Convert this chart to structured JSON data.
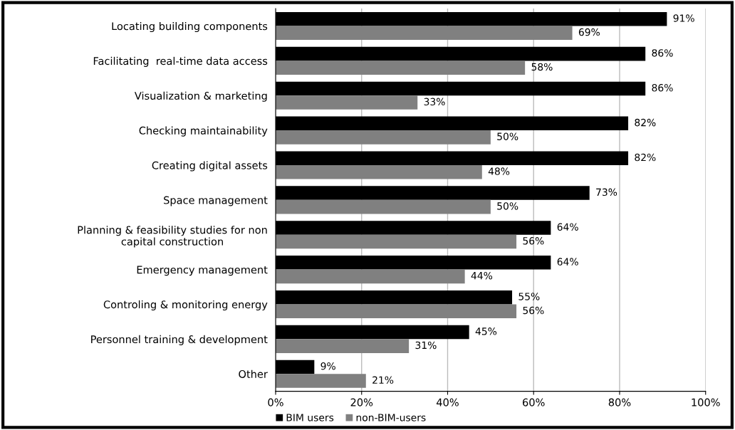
{
  "chart_data": {
    "type": "bar",
    "orientation": "horizontal",
    "categories": [
      "Locating building components",
      "Facilitating  real-time data access",
      "Visualization & marketing",
      "Checking maintainability",
      "Creating digital assets",
      "Space management",
      "Planning & feasibility studies for non\ncapital construction",
      "Emergency management",
      "Controling & monitoring energy",
      "Personnel training & development",
      "Other"
    ],
    "series": [
      {
        "name": "BIM users",
        "color": "#000000",
        "values": [
          91,
          86,
          86,
          82,
          82,
          73,
          64,
          64,
          55,
          45,
          9
        ],
        "value_labels": [
          "91%",
          "86%",
          "86%",
          "82%",
          "82%",
          "73%",
          "64%",
          "64%",
          "55%",
          "45%",
          "9%"
        ]
      },
      {
        "name": "non-BIM-users",
        "color": "#808080",
        "values": [
          69,
          58,
          33,
          50,
          48,
          50,
          56,
          44,
          56,
          31,
          21
        ],
        "value_labels": [
          "69%",
          "58%",
          "33%",
          "50%",
          "48%",
          "50%",
          "56%",
          "44%",
          "56%",
          "31%",
          "21%"
        ]
      }
    ],
    "xlim": [
      0,
      100
    ],
    "xticks": [
      {
        "value": 0,
        "label": "0%"
      },
      {
        "value": 20,
        "label": "20%"
      },
      {
        "value": 40,
        "label": "40%"
      },
      {
        "value": 60,
        "label": "60%"
      },
      {
        "value": 80,
        "label": "80%"
      },
      {
        "value": 100,
        "label": "100%"
      }
    ],
    "grid": "x",
    "legend": "bottom"
  }
}
